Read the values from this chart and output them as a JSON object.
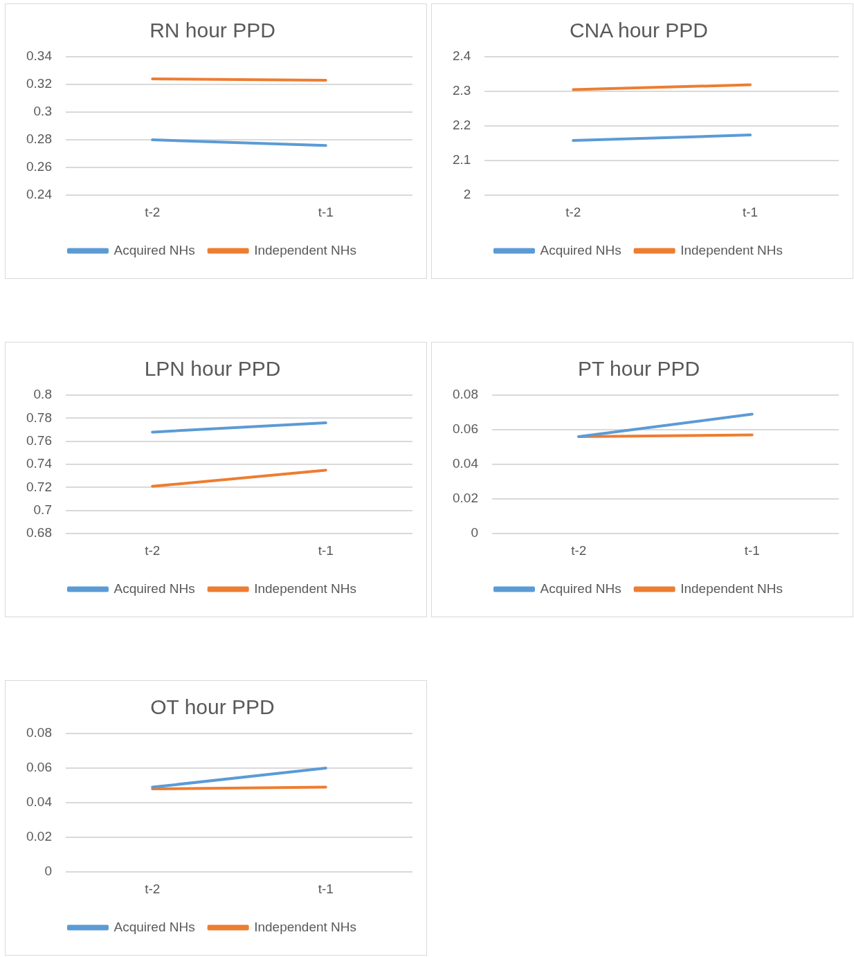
{
  "chart_data": [
    {
      "type": "line",
      "title": "RN hour PPD",
      "categories": [
        "t-2",
        "t-1"
      ],
      "series": [
        {
          "name": "Acquired NHs",
          "color": "#5b9bd5",
          "values": [
            0.28,
            0.276
          ]
        },
        {
          "name": "Independent NHs",
          "color": "#ed7d31",
          "values": [
            0.324,
            0.323
          ]
        }
      ],
      "ylim": [
        0.24,
        0.34
      ],
      "yticks": [
        0.24,
        0.26,
        0.28,
        0.3,
        0.32,
        0.34
      ],
      "grid": "y",
      "legend": "bottom",
      "marker": "none",
      "line_style": "solid"
    },
    {
      "type": "line",
      "title": "CNA hour PPD",
      "categories": [
        "t-2",
        "t-1"
      ],
      "series": [
        {
          "name": "Acquired NHs",
          "color": "#5b9bd5",
          "values": [
            2.158,
            2.174
          ]
        },
        {
          "name": "Independent NHs",
          "color": "#ed7d31",
          "values": [
            2.305,
            2.319
          ]
        }
      ],
      "ylim": [
        2,
        2.4
      ],
      "yticks": [
        2,
        2.1,
        2.2,
        2.3,
        2.4
      ],
      "grid": "y",
      "legend": "bottom",
      "marker": "none",
      "line_style": "solid"
    },
    {
      "type": "line",
      "title": "LPN hour PPD",
      "categories": [
        "t-2",
        "t-1"
      ],
      "series": [
        {
          "name": "Acquired NHs",
          "color": "#5b9bd5",
          "values": [
            0.768,
            0.776
          ]
        },
        {
          "name": "Independent NHs",
          "color": "#ed7d31",
          "values": [
            0.721,
            0.735
          ]
        }
      ],
      "ylim": [
        0.68,
        0.8
      ],
      "yticks": [
        0.68,
        0.7,
        0.72,
        0.74,
        0.76,
        0.78,
        0.8
      ],
      "grid": "y",
      "legend": "bottom",
      "marker": "none",
      "line_style": "solid"
    },
    {
      "type": "line",
      "title": "PT hour PPD",
      "categories": [
        "t-2",
        "t-1"
      ],
      "series": [
        {
          "name": "Acquired NHs",
          "color": "#5b9bd5",
          "values": [
            0.056,
            0.069
          ]
        },
        {
          "name": "Independent NHs",
          "color": "#ed7d31",
          "values": [
            0.056,
            0.057
          ]
        }
      ],
      "ylim": [
        0,
        0.08
      ],
      "yticks": [
        0,
        0.02,
        0.04,
        0.06,
        0.08
      ],
      "grid": "y",
      "legend": "bottom",
      "marker": "none",
      "line_style": "solid"
    },
    {
      "type": "line",
      "title": "OT hour PPD",
      "categories": [
        "t-2",
        "t-1"
      ],
      "series": [
        {
          "name": "Acquired NHs",
          "color": "#5b9bd5",
          "values": [
            0.049,
            0.06
          ]
        },
        {
          "name": "Independent NHs",
          "color": "#ed7d31",
          "values": [
            0.048,
            0.049
          ]
        }
      ],
      "ylim": [
        0,
        0.08
      ],
      "yticks": [
        0,
        0.02,
        0.04,
        0.06,
        0.08
      ],
      "grid": "y",
      "legend": "bottom",
      "marker": "none",
      "line_style": "solid"
    }
  ]
}
